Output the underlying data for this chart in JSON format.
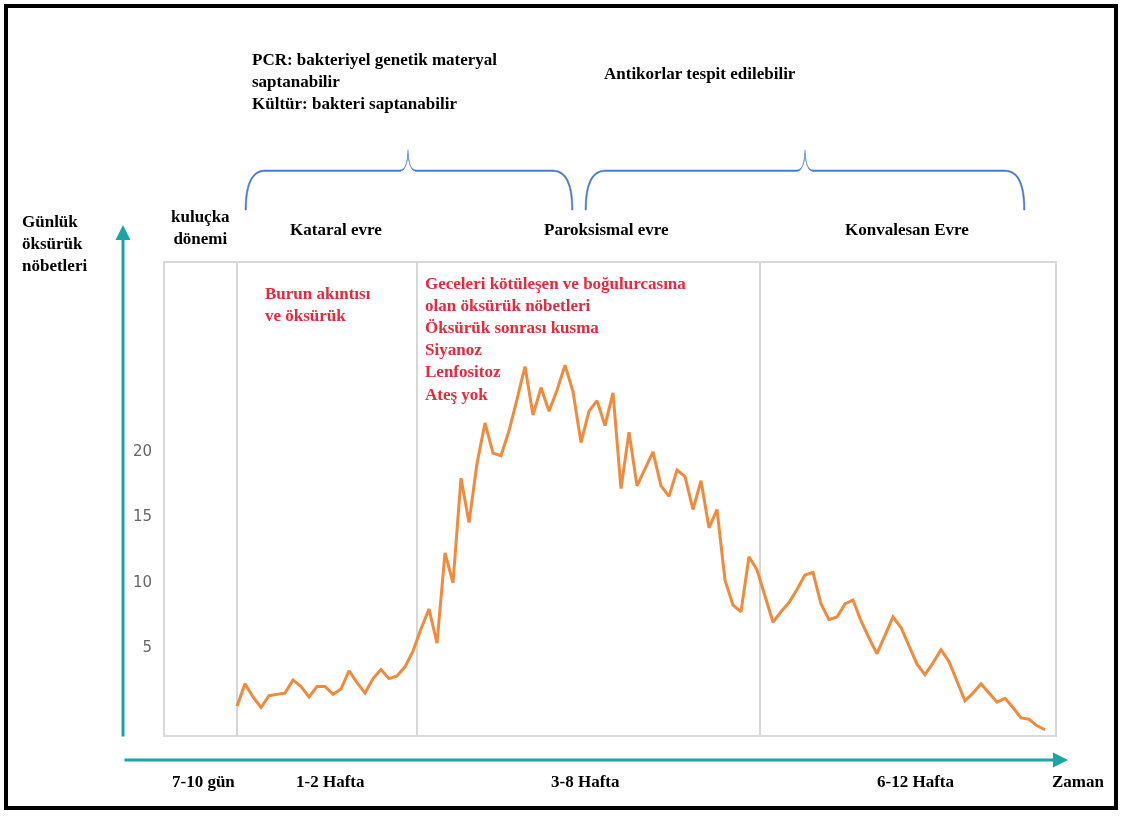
{
  "chart_data": {
    "type": "line",
    "ylabel": "Günlük\nöksürük\nnöbetleri",
    "xlabel": "Zaman",
    "categories": [
      null,
      null,
      null,
      null,
      null,
      null,
      null,
      null,
      null,
      null,
      null,
      null,
      null,
      null,
      null,
      null,
      null,
      null,
      null,
      null,
      null,
      null,
      null,
      null,
      null,
      null,
      null,
      null,
      null,
      null,
      null,
      null,
      null,
      null,
      null,
      null,
      null,
      null,
      null,
      null,
      null,
      null,
      null,
      null,
      null,
      null,
      null,
      null,
      null,
      null,
      null,
      null,
      null,
      null,
      null,
      null,
      null,
      null,
      null,
      null,
      null,
      null,
      null,
      null,
      null,
      null,
      null,
      null,
      null,
      null,
      null,
      null,
      null,
      null,
      null,
      null,
      null,
      null,
      null,
      null,
      null,
      null,
      null,
      null,
      null,
      null,
      null,
      null,
      null,
      null,
      null,
      null,
      null,
      null,
      null,
      null,
      null,
      null,
      null,
      null,
      null,
      null
    ],
    "ylim": [
      -1.7,
      34.3
    ],
    "yticks": [
      5,
      10,
      15,
      20
    ],
    "series": [
      {
        "color": "#f08a3c",
        "values": [
          0.5,
          2.2,
          1.2,
          0.4,
          1.3,
          1.4,
          1.5,
          2.5,
          2.0,
          1.2,
          2.0,
          2.0,
          1.4,
          1.8,
          3.2,
          2.3,
          1.5,
          2.6,
          3.3,
          2.6,
          2.8,
          3.5,
          4.7,
          6.4,
          7.9,
          5.3,
          12.2,
          9.9,
          17.9,
          14.5,
          19.0,
          22.1,
          19.8,
          19.6,
          21.5,
          23.9,
          26.4,
          22.7,
          24.8,
          23.0,
          24.6,
          26.5,
          24.5,
          20.6,
          23.0,
          23.8,
          21.9,
          24.4,
          17.1,
          21.4,
          17.3,
          18.6,
          19.9,
          17.3,
          16.5,
          18.5,
          18.0,
          15.5,
          17.7,
          14.1,
          15.5,
          10.1,
          8.2,
          7.7,
          11.9,
          10.9,
          8.9,
          6.9,
          7.7,
          8.4,
          9.4,
          10.5,
          10.7,
          8.3,
          7.1,
          7.3,
          8.3,
          8.6,
          7.0,
          5.7,
          4.5,
          5.9,
          7.3,
          6.5,
          5.1,
          3.7,
          2.9,
          3.8,
          4.8,
          3.9,
          2.4,
          0.9,
          1.5,
          2.2,
          1.5,
          0.8,
          1.1,
          0.4,
          -0.4,
          -0.5,
          -1.0,
          -1.3
        ]
      }
    ],
    "annotations": [
      "PCR: bakteriyel genetik materyal\nsaptanabilir\nKültür: bakteri saptanabilir",
      "Antikorlar tespit edilebilir",
      "kuluçka\ndönemi",
      "Kataral evre",
      "Paroksismal evre",
      "Konvalesan Evre",
      "Burun akıntısı\nve öksürük",
      "Geceleri kötüleşen ve boğulurcasına\nolan öksürük nöbetleri\nÖksürük sonrası kusma\nSiyanoz\nLenfositoz\nAteş yok",
      "7-10 gün",
      "1-2 Hafta",
      "3-8 Hafta",
      "6-12 Hafta"
    ],
    "grid": false,
    "marker": "none",
    "line_style": "solid"
  }
}
